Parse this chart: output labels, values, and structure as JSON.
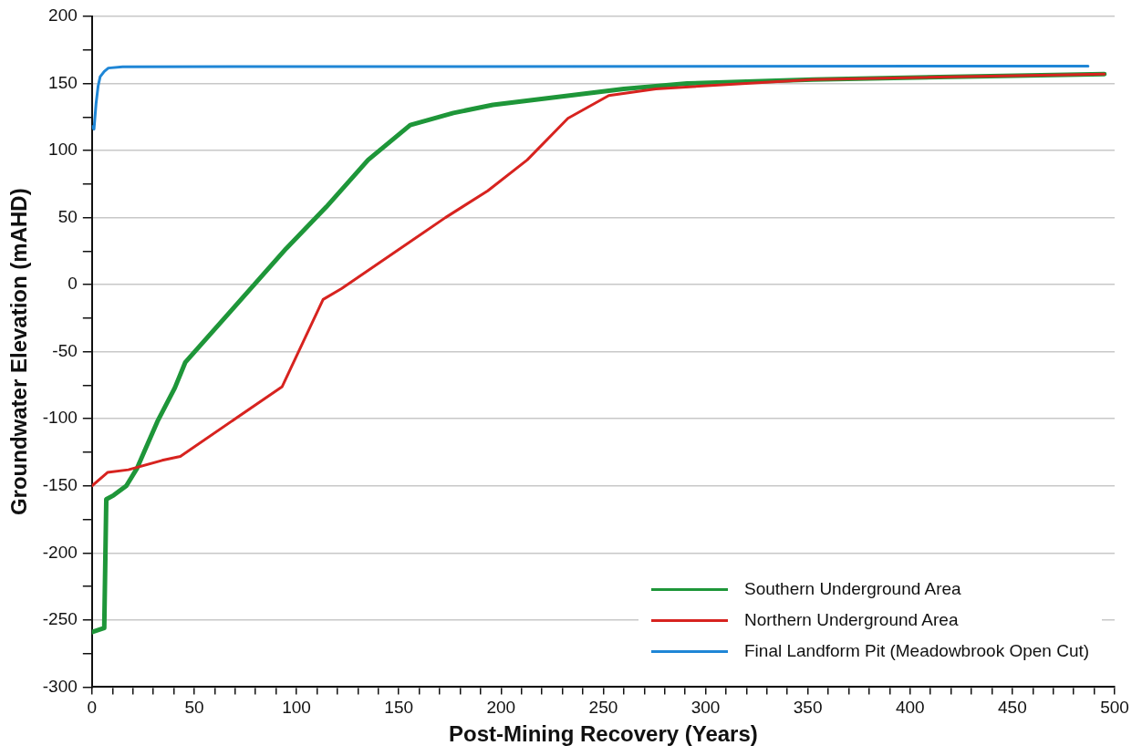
{
  "chart_data": {
    "type": "line",
    "xlabel": "Post-Mining Recovery (Years)",
    "ylabel": "Groundwater Elevation (mAHD)",
    "xlim": [
      0,
      500
    ],
    "xticks": [
      0,
      {
        "value": 10,
        "label": null
      },
      {
        "value": 20,
        "label": null
      },
      {
        "value": 30,
        "label": null
      },
      {
        "value": 40,
        "label": null
      },
      50,
      {
        "value": 60,
        "label": null
      },
      {
        "value": 70,
        "label": null
      },
      {
        "value": 80,
        "label": null
      },
      {
        "value": 90,
        "label": null
      },
      100,
      {
        "value": 110,
        "label": null
      },
      {
        "value": 120,
        "label": null
      },
      {
        "value": 130,
        "label": null
      },
      {
        "value": 140,
        "label": null
      },
      150,
      {
        "value": 160,
        "label": null
      },
      {
        "value": 170,
        "label": null
      },
      {
        "value": 180,
        "label": null
      },
      {
        "value": 190,
        "label": null
      },
      200,
      {
        "value": 210,
        "label": null
      },
      {
        "value": 220,
        "label": null
      },
      {
        "value": 230,
        "label": null
      },
      {
        "value": 240,
        "label": null
      },
      250,
      {
        "value": 260,
        "label": null
      },
      {
        "value": 270,
        "label": null
      },
      {
        "value": 280,
        "label": null
      },
      {
        "value": 290,
        "label": null
      },
      300,
      {
        "value": 310,
        "label": null
      },
      {
        "value": 320,
        "label": null
      },
      {
        "value": 330,
        "label": null
      },
      {
        "value": 340,
        "label": null
      },
      350,
      {
        "value": 360,
        "label": null
      },
      {
        "value": 370,
        "label": null
      },
      {
        "value": 380,
        "label": null
      },
      {
        "value": 390,
        "label": null
      },
      400,
      {
        "value": 410,
        "label": null
      },
      {
        "value": 420,
        "label": null
      },
      {
        "value": 430,
        "label": null
      },
      {
        "value": 440,
        "label": null
      },
      450,
      {
        "value": 460,
        "label": null
      },
      {
        "value": 470,
        "label": null
      },
      {
        "value": 480,
        "label": null
      },
      {
        "value": 490,
        "label": null
      },
      500
    ],
    "ylim": [
      -300,
      200
    ],
    "yticks": [
      -300,
      {
        "value": -275,
        "label": null
      },
      -250,
      {
        "value": -225,
        "label": null
      },
      -200,
      {
        "value": -175,
        "label": null
      },
      -150,
      {
        "value": -125,
        "label": null
      },
      -100,
      {
        "value": -75,
        "label": null
      },
      -50,
      {
        "value": -25,
        "label": null
      },
      0,
      {
        "value": 25,
        "label": null
      },
      50,
      {
        "value": 75,
        "label": null
      },
      100,
      {
        "value": 125,
        "label": null
      },
      150,
      {
        "value": 175,
        "label": null
      },
      200
    ],
    "grid": "y",
    "legend": "bottom right",
    "marker": "none",
    "line_style": "solid",
    "series": [
      {
        "name": "Southern Underground Area",
        "color": "#1e9639",
        "x": [
          0,
          6,
          7,
          10.6,
          16.8,
          22,
          26,
          32,
          40.5,
          45.6,
          95,
          114.6,
          135,
          155.6,
          176.7,
          196,
          260,
          291,
          352.5,
          495
        ],
        "values": [
          -259,
          -256,
          -160,
          -157,
          -150,
          -137,
          -123,
          -102,
          -77,
          -58,
          27,
          58,
          93,
          119,
          128,
          134,
          146,
          150,
          153,
          157
        ]
      },
      {
        "name": "Northern Underground Area",
        "color": "#d7231f",
        "x": [
          0,
          7.6,
          17.8,
          34.3,
          43.2,
          93,
          113,
          122,
          172.8,
          193.5,
          212.8,
          232.7,
          252.7,
          275.7,
          352.5,
          495
        ],
        "values": [
          -150,
          -140,
          -138,
          -131,
          -128,
          -76,
          -11,
          -3,
          50,
          70,
          93,
          124,
          141,
          146,
          153,
          157
        ]
      },
      {
        "name": "Final Landform Pit (Meadowbrook Open Cut)",
        "color": "#1f86d6",
        "x": [
          0,
          1,
          2,
          3,
          4,
          6,
          8,
          15,
          487
        ],
        "values": [
          118,
          116,
          135,
          148,
          155,
          159,
          161.5,
          162.5,
          163
        ]
      }
    ]
  }
}
